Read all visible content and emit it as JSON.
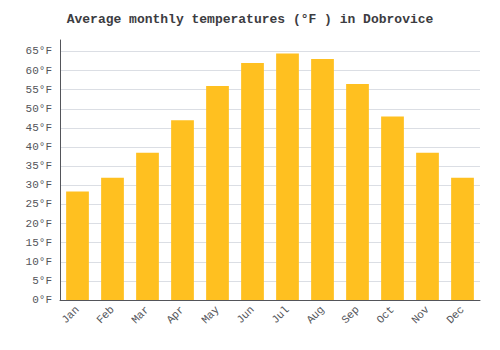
{
  "chart_data": {
    "type": "bar",
    "title": "Average monthly temperatures (°F ) in Dobrovice",
    "categories": [
      "Jan",
      "Feb",
      "Mar",
      "Apr",
      "May",
      "Jun",
      "Jul",
      "Aug",
      "Sep",
      "Oct",
      "Nov",
      "Dec"
    ],
    "values": [
      28.4,
      32.0,
      38.5,
      47.0,
      56.0,
      62.0,
      64.5,
      63.0,
      56.5,
      48.0,
      38.5,
      32.0
    ],
    "color": "#FFC020",
    "ylim": [
      0,
      68
    ],
    "yticks": [
      {
        "value": 0,
        "label": "0°F"
      },
      {
        "value": 5,
        "label": "5°F"
      },
      {
        "value": 10,
        "label": "10°F"
      },
      {
        "value": 15,
        "label": "15°F"
      },
      {
        "value": 20,
        "label": "20°F"
      },
      {
        "value": 25,
        "label": "25°F"
      },
      {
        "value": 30,
        "label": "30°F"
      },
      {
        "value": 35,
        "label": "35°F"
      },
      {
        "value": 40,
        "label": "40°F"
      },
      {
        "value": 45,
        "label": "45°F"
      },
      {
        "value": 50,
        "label": "50°F"
      },
      {
        "value": 55,
        "label": "55°F"
      },
      {
        "value": 60,
        "label": "60°F"
      },
      {
        "value": 65,
        "label": "65°F"
      }
    ],
    "grid": true
  }
}
